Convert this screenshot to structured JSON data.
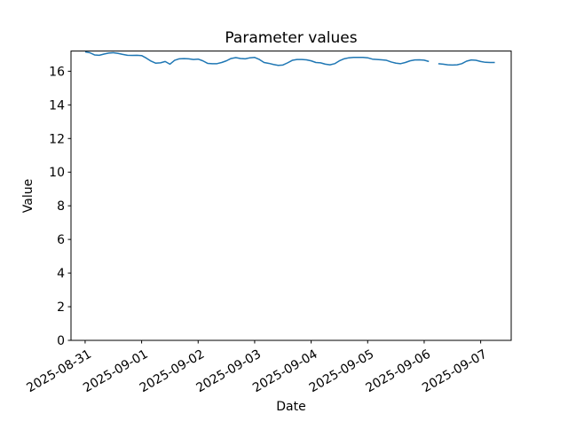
{
  "figure": {
    "title": "Parameter values",
    "xlabel": "Date",
    "ylabel": "Value"
  },
  "chart_data": {
    "type": "line",
    "title": "Parameter values",
    "xlabel": "Date",
    "ylabel": "Value",
    "line_color": "#1f77b4",
    "line_width": 1.5,
    "background_color": "#ffffff",
    "grid": false,
    "legend": false,
    "ylim": [
      0,
      17.2
    ],
    "xlim_days": [
      -0.25,
      7.54
    ],
    "y_ticks": [
      0,
      2,
      4,
      6,
      8,
      10,
      12,
      14,
      16
    ],
    "x_tick_days": [
      0,
      1,
      2,
      3,
      4,
      5,
      6,
      7
    ],
    "x_tick_labels": [
      "2025-08-31",
      "2025-09-01",
      "2025-09-02",
      "2025-09-03",
      "2025-09-04",
      "2025-09-05",
      "2025-09-06",
      "2025-09-07"
    ],
    "x_tick_rotation_deg": 30,
    "series_start": "2025-08-31 00:00",
    "series_step_hours": 2,
    "values": [
      17.15,
      17.1,
      16.97,
      16.95,
      17.02,
      17.08,
      17.1,
      17.06,
      17.0,
      16.95,
      16.94,
      16.95,
      16.93,
      16.78,
      16.6,
      16.48,
      16.5,
      16.58,
      16.42,
      16.65,
      16.74,
      16.75,
      16.74,
      16.7,
      16.72,
      16.62,
      16.47,
      16.45,
      16.45,
      16.52,
      16.62,
      16.76,
      16.81,
      16.76,
      16.74,
      16.8,
      16.82,
      16.7,
      16.52,
      16.47,
      16.4,
      16.35,
      16.37,
      16.5,
      16.65,
      16.7,
      16.7,
      16.68,
      16.62,
      16.52,
      16.5,
      16.42,
      16.38,
      16.45,
      16.62,
      16.74,
      16.8,
      16.82,
      16.82,
      16.82,
      16.8,
      16.72,
      16.7,
      16.68,
      16.65,
      16.55,
      16.48,
      16.45,
      16.52,
      16.62,
      16.67,
      16.68,
      16.66,
      16.58,
      null,
      16.45,
      16.42,
      16.38,
      16.37,
      16.38,
      16.45,
      16.6,
      16.67,
      16.65,
      16.58,
      16.53,
      16.52,
      16.52
    ]
  }
}
